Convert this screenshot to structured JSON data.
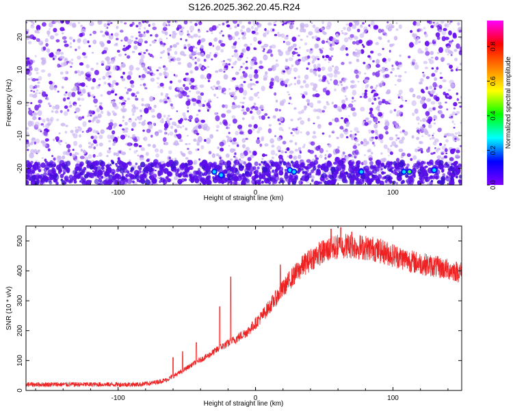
{
  "title": "S126.2025.362.20.45.R24",
  "colors": {
    "line": "#ee2222",
    "dots_dense": "#6a12ee",
    "dots_light": "#c9b3f2"
  },
  "chart_data": [
    {
      "type": "heatmap",
      "xlabel": "Height of straight line (km)",
      "ylabel": "Frequency (Hz)",
      "xlim": [
        -167,
        150
      ],
      "ylim": [
        -25,
        25
      ],
      "xticks": [
        -100,
        0,
        100
      ],
      "xtick_labels": [
        "-100",
        "0",
        "100"
      ],
      "yticks": [
        -20,
        -10,
        0,
        10,
        20
      ],
      "ytick_labels": [
        "-20",
        "-10",
        "0",
        "10",
        "20"
      ],
      "colorbar": {
        "label": "Normalized spectral amplitude",
        "range": [
          0,
          0.95
        ],
        "ticks": [
          0.0,
          0.2,
          0.4,
          0.6,
          0.8
        ],
        "tick_labels": [
          "0.0",
          "0.2",
          "0.4",
          "0.6",
          "0.8"
        ],
        "colormap": [
          "#8000ff",
          "#0000ff",
          "#00ffff",
          "#00ff00",
          "#ffff00",
          "#ff8000",
          "#ff0000",
          "#ff00ff"
        ]
      },
      "bright_spots": [
        {
          "x": -30,
          "y": -21,
          "value": 0.25
        },
        {
          "x": -25,
          "y": -22,
          "value": 0.2
        },
        {
          "x": 25,
          "y": -20.5,
          "value": 0.25
        },
        {
          "x": 28,
          "y": -21,
          "value": 0.2
        },
        {
          "x": 77,
          "y": -21,
          "value": 0.2
        },
        {
          "x": 108,
          "y": -21,
          "value": 0.3
        },
        {
          "x": 112,
          "y": -21,
          "value": 0.35
        },
        {
          "x": 130,
          "y": -20.5,
          "value": 0.22
        }
      ]
    },
    {
      "type": "line",
      "xlabel": "Height of straight line (km)",
      "ylabel": "SNR (10 * v/v)",
      "xlim": [
        -167,
        150
      ],
      "ylim": [
        0,
        550
      ],
      "xticks": [
        -100,
        0,
        100
      ],
      "xtick_labels": [
        "-100",
        "0",
        "100"
      ],
      "yticks": [
        0,
        100,
        200,
        300,
        400,
        500
      ],
      "ytick_labels": [
        "0",
        "100",
        "200",
        "300",
        "400",
        "500"
      ],
      "series_envelope": {
        "x": [
          -167,
          -140,
          -110,
          -85,
          -75,
          -65,
          -55,
          -45,
          -35,
          -25,
          -15,
          -5,
          5,
          15,
          25,
          35,
          45,
          55,
          65,
          75,
          85,
          95,
          105,
          115,
          125,
          135,
          145,
          150
        ],
        "y": [
          20,
          20,
          20,
          20,
          25,
          35,
          60,
          90,
          115,
          145,
          170,
          200,
          250,
          310,
          370,
          420,
          455,
          475,
          485,
          480,
          475,
          460,
          445,
          430,
          420,
          410,
          400,
          395
        ]
      },
      "spikes": [
        {
          "x": -60,
          "y": 110
        },
        {
          "x": -53,
          "y": 130
        },
        {
          "x": -43,
          "y": 160
        },
        {
          "x": -26,
          "y": 280
        },
        {
          "x": -18,
          "y": 380
        },
        {
          "x": 18,
          "y": 420
        },
        {
          "x": 55,
          "y": 540
        },
        {
          "x": 62,
          "y": 545
        },
        {
          "x": 70,
          "y": 530
        }
      ]
    }
  ]
}
